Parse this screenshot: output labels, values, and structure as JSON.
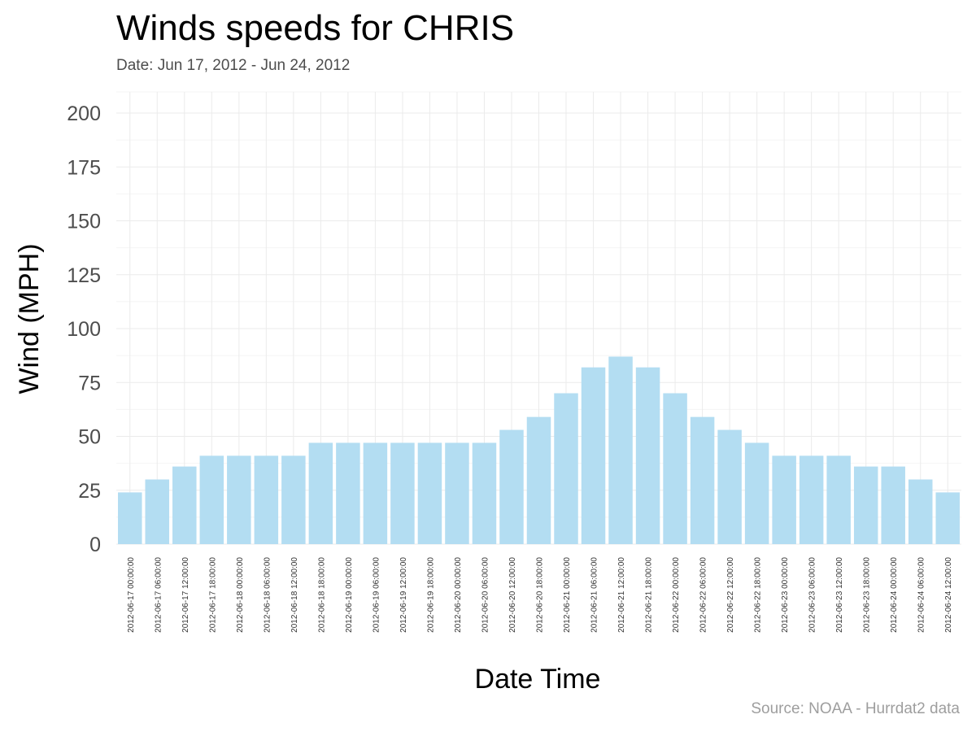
{
  "chart_data": {
    "type": "bar",
    "title": "Winds speeds for CHRIS",
    "subtitle": "Date:  Jun 17, 2012 - Jun 24, 2012",
    "xlabel": "Date Time",
    "ylabel": "Wind (MPH)",
    "source": "Source: NOAA - Hurrdat2 data",
    "ylim": [
      0,
      200
    ],
    "yticks": [
      "0",
      "25",
      "50",
      "75",
      "100",
      "125",
      "150",
      "175",
      "200"
    ],
    "ytick_values": [
      0,
      25,
      50,
      75,
      100,
      125,
      150,
      175,
      200
    ],
    "grid": true,
    "bar_color": "#b3ddf2",
    "categories": [
      "2012-06-17 00:00:00",
      "2012-06-17 06:00:00",
      "2012-06-17 12:00:00",
      "2012-06-17 18:00:00",
      "2012-06-18 00:00:00",
      "2012-06-18 06:00:00",
      "2012-06-18 12:00:00",
      "2012-06-18 18:00:00",
      "2012-06-19 00:00:00",
      "2012-06-19 06:00:00",
      "2012-06-19 12:00:00",
      "2012-06-19 18:00:00",
      "2012-06-20 00:00:00",
      "2012-06-20 06:00:00",
      "2012-06-20 12:00:00",
      "2012-06-20 18:00:00",
      "2012-06-21 00:00:00",
      "2012-06-21 06:00:00",
      "2012-06-21 12:00:00",
      "2012-06-21 18:00:00",
      "2012-06-22 00:00:00",
      "2012-06-22 06:00:00",
      "2012-06-22 12:00:00",
      "2012-06-22 18:00:00",
      "2012-06-23 00:00:00",
      "2012-06-23 06:00:00",
      "2012-06-23 12:00:00",
      "2012-06-23 18:00:00",
      "2012-06-24 00:00:00",
      "2012-06-24 06:00:00",
      "2012-06-24 12:00:00"
    ],
    "values": [
      24,
      30,
      36,
      41,
      41,
      41,
      41,
      47,
      47,
      47,
      47,
      47,
      47,
      47,
      53,
      59,
      70,
      82,
      87,
      82,
      70,
      59,
      53,
      47,
      41,
      41,
      41,
      36,
      36,
      30,
      24
    ]
  }
}
